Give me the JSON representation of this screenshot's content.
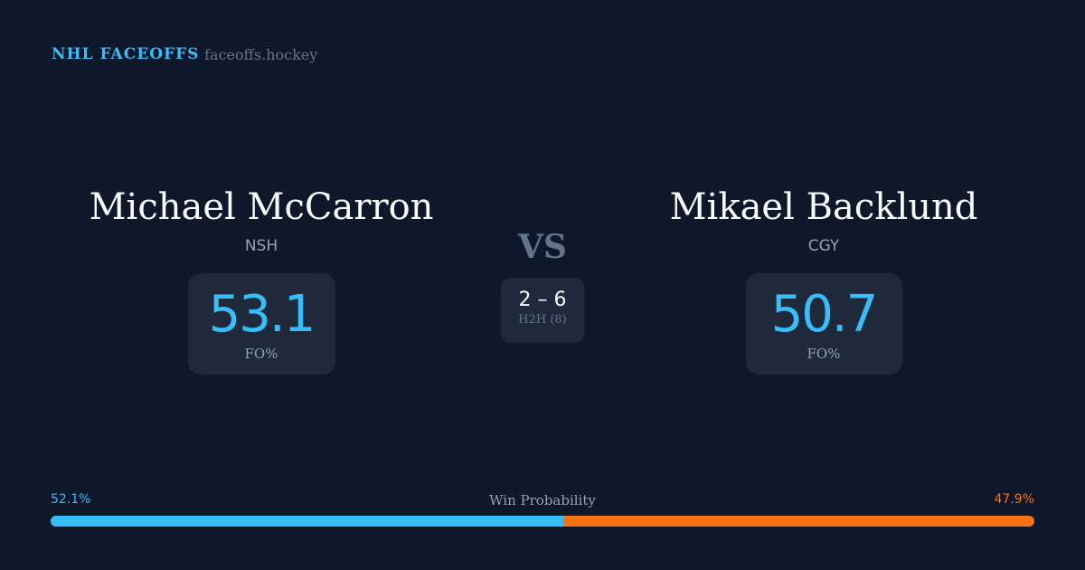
{
  "header": {
    "brand": "NHL FACEOFFS",
    "site": "faceoffs.hockey"
  },
  "left": {
    "name": "Michael McCarron",
    "team": "NSH",
    "fo_pct": "53.1",
    "fo_label": "FO%"
  },
  "right": {
    "name": "Mikael Backlund",
    "team": "CGY",
    "fo_pct": "50.7",
    "fo_label": "FO%"
  },
  "vs": "VS",
  "h2h": {
    "score": "2 – 6",
    "label": "H2H (8)"
  },
  "win_prob": {
    "label": "Win Probability",
    "left": "52.1%",
    "right": "47.9%",
    "left_value": 52.1,
    "right_value": 47.9,
    "left_color": "#38bdf8",
    "right_color": "#f97316"
  }
}
